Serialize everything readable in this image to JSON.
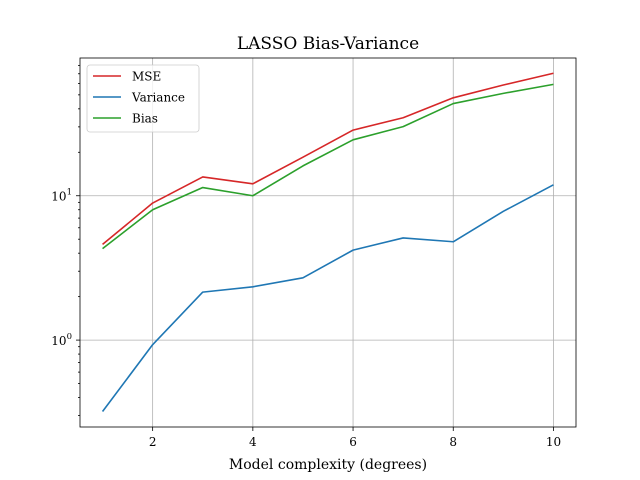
{
  "chart_data": {
    "type": "line",
    "title": "LASSO Bias-Variance",
    "xlabel": "Model complexity (degrees)",
    "ylabel": "",
    "x": [
      1,
      2,
      3,
      4,
      5,
      6,
      7,
      8,
      9,
      10
    ],
    "xlim": [
      0.55,
      10.45
    ],
    "ylim": [
      0.25,
      90
    ],
    "yscale": "log",
    "xticks": [
      2,
      4,
      6,
      8,
      10
    ],
    "xtick_labels": [
      "2",
      "4",
      "6",
      "8",
      "10"
    ],
    "yticks": [
      1,
      10
    ],
    "ytick_labels": [
      "10^0",
      "10^1"
    ],
    "grid": true,
    "legend": "top-left",
    "series": [
      {
        "name": "MSE",
        "color": "#d62728",
        "values": [
          4.6,
          8.9,
          13.5,
          12.1,
          18.5,
          28.5,
          34.7,
          47.7,
          58.5,
          70.6
        ]
      },
      {
        "name": "Variance",
        "color": "#1f77b4",
        "values": [
          0.32,
          0.93,
          2.15,
          2.34,
          2.7,
          4.2,
          5.1,
          4.8,
          7.8,
          11.9
        ]
      },
      {
        "name": "Bias",
        "color": "#2ca02c",
        "values": [
          4.3,
          8.0,
          11.4,
          10.0,
          16.1,
          24.4,
          30.1,
          43.5,
          51.2,
          59.1
        ]
      }
    ]
  }
}
